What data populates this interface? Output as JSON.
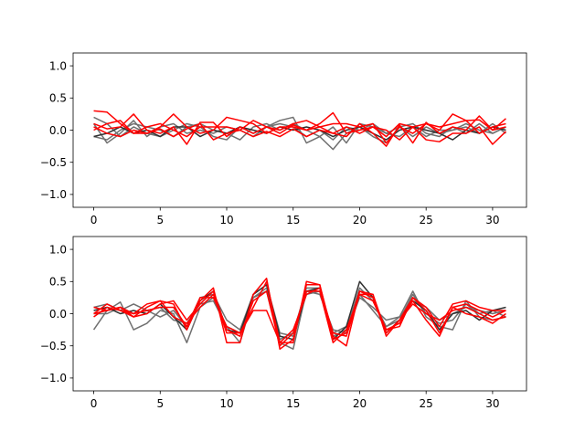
{
  "chart_data": [
    {
      "type": "line",
      "title": "",
      "xlabel": "",
      "ylabel": "",
      "xlim": [
        -1.55,
        32.55
      ],
      "ylim": [
        -1.2,
        1.2
      ],
      "xticks": [
        0,
        5,
        10,
        15,
        20,
        25,
        30
      ],
      "yticks": [
        -1.0,
        -0.5,
        0.0,
        0.5,
        1.0
      ],
      "xtick_labels": [
        "0",
        "5",
        "10",
        "15",
        "20",
        "25",
        "30"
      ],
      "ytick_labels": [
        "−1.0",
        "−0.5",
        "0.0",
        "0.5",
        "1.0"
      ],
      "grid": false,
      "series": [
        {
          "color": "#707070",
          "values": [
            0.2,
            0.1,
            -0.1,
            0.05,
            -0.05,
            -0.1,
            0.0,
            0.1,
            0.05,
            -0.1,
            -0.15,
            0.05,
            -0.05,
            0.05,
            0.15,
            0.2,
            -0.2,
            -0.1,
            -0.3,
            -0.05,
            0.05,
            -0.1,
            -0.2,
            0.05,
            0.1,
            -0.05,
            -0.1,
            0.05,
            -0.05,
            0.1,
            -0.05,
            0.05
          ]
        },
        {
          "color": "#707070",
          "values": [
            -0.1,
            -0.15,
            0.0,
            0.1,
            0.05,
            0.0,
            -0.1,
            0.05,
            0.1,
            0.0,
            -0.05,
            -0.15,
            0.05,
            0.1,
            0.0,
            0.1,
            0.0,
            -0.1,
            0.05,
            -0.2,
            0.1,
            0.05,
            -0.05,
            -0.1,
            0.05,
            -0.1,
            0.0,
            0.0,
            0.05,
            -0.05,
            0.1,
            -0.05
          ]
        },
        {
          "color": "#707070",
          "values": [
            0.1,
            -0.2,
            -0.05,
            0.15,
            -0.1,
            0.05,
            0.1,
            -0.05,
            0.0,
            -0.05,
            0.05,
            0.0,
            -0.1,
            0.05,
            0.1,
            0.05,
            -0.1,
            0.0,
            -0.15,
            0.05,
            0.0,
            0.1,
            -0.05,
            0.05,
            -0.1,
            0.05,
            -0.05,
            0.0,
            0.1,
            0.0,
            -0.05,
            0.05
          ]
        },
        {
          "color": "#303030",
          "values": [
            -0.1,
            -0.05,
            0.05,
            -0.05,
            0.0,
            -0.1,
            0.05,
            0.05,
            -0.1,
            0.0,
            -0.05,
            0.05,
            0.0,
            -0.05,
            0.05,
            0.0,
            0.05,
            0.0,
            -0.1,
            0.0,
            0.05,
            -0.05,
            -0.15,
            0.0,
            0.05,
            0.0,
            -0.05,
            -0.15,
            0.0,
            -0.05,
            0.05,
            0.0
          ]
        },
        {
          "color": "#ff0000",
          "values": [
            0.3,
            0.28,
            0.1,
            -0.05,
            -0.05,
            0.05,
            0.25,
            0.05,
            -0.05,
            0.0,
            0.2,
            0.15,
            0.1,
            -0.05,
            0.05,
            0.05,
            0.0,
            0.1,
            0.27,
            -0.05,
            0.0,
            0.05,
            -0.1,
            0.1,
            0.05,
            0.1,
            0.0,
            0.25,
            0.15,
            0.16,
            0.0,
            0.05
          ]
        },
        {
          "color": "#ff0000",
          "values": [
            0.1,
            0.02,
            0.05,
            0.25,
            0.0,
            -0.05,
            0.05,
            -0.22,
            0.12,
            0.12,
            -0.1,
            0.05,
            -0.05,
            0.05,
            -0.05,
            0.08,
            0.0,
            0.05,
            -0.05,
            -0.1,
            0.1,
            -0.05,
            -0.25,
            0.08,
            -0.2,
            0.12,
            -0.05,
            0.05,
            0.0,
            0.22,
            0.0,
            0.18
          ]
        },
        {
          "color": "#ff0000",
          "values": [
            0.05,
            -0.05,
            -0.1,
            0.0,
            -0.05,
            0.02,
            -0.1,
            0.02,
            0.1,
            -0.15,
            -0.05,
            0.0,
            -0.1,
            -0.02,
            -0.1,
            0.02,
            -0.1,
            0.0,
            -0.05,
            0.05,
            -0.05,
            0.05,
            0.0,
            -0.15,
            0.05,
            -0.15,
            -0.18,
            -0.05,
            -0.05,
            0.05,
            -0.22,
            -0.02
          ]
        },
        {
          "color": "#ff0000",
          "values": [
            0.0,
            0.1,
            0.15,
            -0.05,
            0.05,
            0.1,
            0.0,
            -0.1,
            0.05,
            0.05,
            0.05,
            0.0,
            0.15,
            0.05,
            0.0,
            0.1,
            0.15,
            0.05,
            0.1,
            0.1,
            0.05,
            0.1,
            -0.2,
            0.05,
            -0.05,
            0.1,
            0.05,
            0.1,
            0.15,
            -0.05,
            0.05,
            0.1
          ]
        }
      ]
    },
    {
      "type": "line",
      "title": "",
      "xlabel": "",
      "ylabel": "",
      "xlim": [
        -1.55,
        32.55
      ],
      "ylim": [
        -1.2,
        1.2
      ],
      "xticks": [
        0,
        5,
        10,
        15,
        20,
        25,
        30
      ],
      "yticks": [
        -1.0,
        -0.5,
        0.0,
        0.5,
        1.0
      ],
      "xtick_labels": [
        "0",
        "5",
        "10",
        "15",
        "20",
        "25",
        "30"
      ],
      "ytick_labels": [
        "−1.0",
        "−0.5",
        "0.0",
        "0.5",
        "1.0"
      ],
      "grid": false,
      "series": [
        {
          "color": "#707070",
          "values": [
            -0.25,
            0.05,
            0.18,
            -0.25,
            -0.15,
            0.05,
            0.0,
            -0.45,
            0.1,
            0.25,
            -0.2,
            -0.45,
            0.25,
            0.35,
            -0.45,
            -0.55,
            0.35,
            0.3,
            -0.25,
            -0.3,
            0.25,
            0.1,
            -0.1,
            -0.05,
            0.35,
            -0.05,
            -0.2,
            -0.25,
            0.2,
            -0.05,
            -0.1,
            -0.05
          ]
        },
        {
          "color": "#707070",
          "values": [
            0.1,
            0.15,
            0.05,
            0.15,
            0.05,
            -0.05,
            0.05,
            -0.2,
            0.25,
            0.3,
            -0.1,
            -0.25,
            0.3,
            0.45,
            -0.3,
            -0.35,
            0.3,
            0.35,
            -0.3,
            -0.2,
            0.3,
            0.05,
            -0.2,
            -0.1,
            0.3,
            0.0,
            -0.15,
            -0.1,
            0.15,
            0.0,
            0.05,
            -0.05
          ]
        },
        {
          "color": "#707070",
          "values": [
            0.0,
            0.0,
            0.1,
            0.0,
            0.05,
            0.1,
            -0.1,
            -0.15,
            0.15,
            0.2,
            -0.2,
            -0.3,
            0.25,
            0.4,
            -0.4,
            -0.3,
            0.4,
            0.4,
            -0.35,
            -0.25,
            0.4,
            0.2,
            -0.2,
            -0.05,
            0.2,
            0.1,
            -0.1,
            0.0,
            0.1,
            0.05,
            0.0,
            0.05
          ]
        },
        {
          "color": "#303030",
          "values": [
            0.05,
            0.1,
            0.0,
            0.05,
            0.0,
            0.15,
            -0.05,
            -0.25,
            0.2,
            0.35,
            -0.25,
            -0.3,
            0.3,
            0.45,
            -0.35,
            -0.4,
            0.35,
            0.4,
            -0.4,
            -0.2,
            0.5,
            0.25,
            -0.3,
            -0.1,
            0.2,
            0.05,
            -0.25,
            0.0,
            0.05,
            -0.1,
            0.05,
            0.1
          ]
        },
        {
          "color": "#ff0000",
          "values": [
            0.0,
            0.15,
            0.05,
            -0.05,
            0.1,
            0.2,
            0.15,
            -0.25,
            0.2,
            0.4,
            -0.45,
            -0.45,
            0.3,
            0.55,
            -0.55,
            -0.4,
            0.45,
            0.45,
            -0.35,
            -0.5,
            0.35,
            0.3,
            -0.35,
            -0.1,
            0.25,
            0.05,
            -0.3,
            0.1,
            0.0,
            -0.05,
            -0.15,
            0.0
          ]
        },
        {
          "color": "#ff0000",
          "values": [
            0.1,
            0.05,
            0.1,
            0.0,
            0.15,
            0.2,
            -0.05,
            -0.15,
            0.1,
            0.3,
            -0.3,
            -0.3,
            0.1,
            0.5,
            -0.45,
            -0.45,
            0.5,
            0.45,
            -0.4,
            -0.3,
            0.35,
            0.25,
            -0.25,
            -0.15,
            0.2,
            -0.1,
            -0.35,
            0.1,
            0.15,
            0.05,
            -0.05,
            0.05
          ]
        },
        {
          "color": "#ff0000",
          "values": [
            -0.05,
            0.1,
            0.05,
            0.0,
            0.05,
            0.1,
            0.1,
            -0.2,
            0.25,
            0.25,
            -0.2,
            -0.3,
            0.05,
            0.05,
            -0.45,
            -0.25,
            0.3,
            0.4,
            -0.3,
            -0.35,
            0.3,
            0.2,
            -0.25,
            -0.2,
            0.25,
            0.1,
            -0.2,
            0.15,
            0.2,
            0.1,
            0.05,
            0.05
          ]
        },
        {
          "color": "#ff0000",
          "values": [
            0.0,
            0.05,
            0.1,
            -0.05,
            0.0,
            0.15,
            0.2,
            -0.1,
            0.15,
            0.35,
            -0.25,
            -0.35,
            0.2,
            0.35,
            -0.5,
            -0.3,
            0.35,
            0.35,
            -0.45,
            -0.25,
            0.3,
            0.3,
            -0.3,
            -0.1,
            0.15,
            0.0,
            -0.1,
            0.05,
            0.1,
            0.0,
            -0.1,
            -0.05
          ]
        }
      ]
    }
  ]
}
